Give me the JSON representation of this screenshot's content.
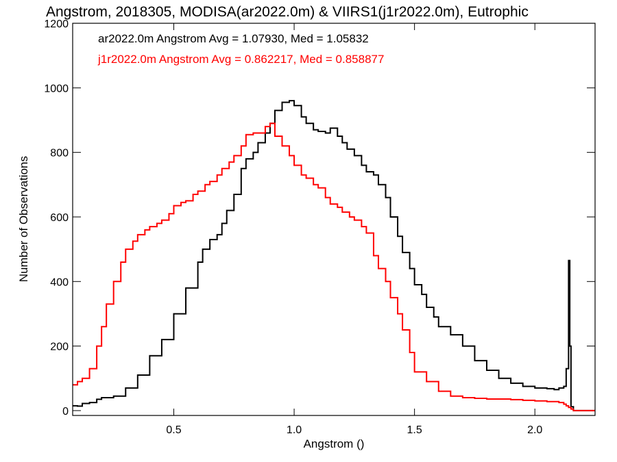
{
  "chart_data": {
    "type": "line",
    "title": "Angstrom, 2018305, MODISA(ar2022.0m) & VIIRS1(j1r2022.0m), Eutrophic",
    "xlabel": "Angstrom ()",
    "ylabel": "Number of Observations",
    "xlim": [
      0.08,
      2.25
    ],
    "ylim": [
      -15,
      1200
    ],
    "x_ticks": [
      0.5,
      1.0,
      1.5,
      2.0
    ],
    "x_tick_labels": [
      "0.5",
      "1.0",
      "1.5",
      "2.0"
    ],
    "y_ticks": [
      0,
      200,
      400,
      600,
      800,
      1000,
      1200
    ],
    "y_tick_labels": [
      "0",
      "200",
      "400",
      "600",
      "800",
      "1000",
      "1200"
    ],
    "grid": false,
    "step_style": "histogram",
    "annotations": [
      {
        "text": "ar2022.0m Angstrom Avg = 1.07930, Med = 1.05832",
        "color": "#000000"
      },
      {
        "text": "j1r2022.0m Angstrom Avg = 0.862217, Med = 0.858877",
        "color": "#ff0000"
      }
    ],
    "series": [
      {
        "color": "#000000",
        "x": [
          0.08,
          0.1,
          0.12,
          0.15,
          0.18,
          0.2,
          0.25,
          0.3,
          0.35,
          0.4,
          0.45,
          0.5,
          0.55,
          0.6,
          0.62,
          0.65,
          0.68,
          0.7,
          0.72,
          0.75,
          0.78,
          0.8,
          0.83,
          0.85,
          0.88,
          0.9,
          0.92,
          0.95,
          0.98,
          1.0,
          1.03,
          1.05,
          1.08,
          1.1,
          1.13,
          1.15,
          1.18,
          1.2,
          1.22,
          1.25,
          1.28,
          1.3,
          1.33,
          1.35,
          1.38,
          1.4,
          1.43,
          1.45,
          1.48,
          1.5,
          1.53,
          1.55,
          1.58,
          1.6,
          1.65,
          1.7,
          1.75,
          1.8,
          1.85,
          1.9,
          1.95,
          2.0,
          2.05,
          2.08,
          2.1,
          2.12,
          2.13,
          2.14,
          2.145,
          2.15,
          2.16,
          2.18,
          2.2,
          2.25
        ],
        "values": [
          15,
          14,
          22,
          25,
          35,
          40,
          45,
          70,
          110,
          170,
          220,
          300,
          380,
          460,
          500,
          530,
          545,
          580,
          620,
          670,
          750,
          780,
          800,
          830,
          860,
          890,
          930,
          955,
          960,
          945,
          910,
          890,
          870,
          865,
          860,
          875,
          850,
          830,
          810,
          790,
          760,
          740,
          730,
          700,
          660,
          600,
          540,
          490,
          440,
          390,
          360,
          320,
          290,
          260,
          235,
          200,
          155,
          125,
          100,
          85,
          75,
          70,
          68,
          65,
          70,
          75,
          130,
          465,
          200,
          12,
          0,
          0,
          0,
          0
        ]
      },
      {
        "color": "#ff0000",
        "x": [
          0.08,
          0.1,
          0.12,
          0.15,
          0.18,
          0.2,
          0.22,
          0.25,
          0.28,
          0.3,
          0.33,
          0.35,
          0.38,
          0.4,
          0.43,
          0.45,
          0.48,
          0.5,
          0.53,
          0.55,
          0.58,
          0.6,
          0.63,
          0.65,
          0.68,
          0.7,
          0.73,
          0.75,
          0.78,
          0.8,
          0.83,
          0.85,
          0.88,
          0.9,
          0.92,
          0.95,
          0.98,
          1.0,
          1.03,
          1.05,
          1.08,
          1.1,
          1.13,
          1.15,
          1.18,
          1.2,
          1.23,
          1.25,
          1.28,
          1.3,
          1.33,
          1.35,
          1.38,
          1.4,
          1.43,
          1.45,
          1.48,
          1.5,
          1.55,
          1.6,
          1.65,
          1.7,
          1.75,
          1.8,
          1.85,
          1.9,
          1.95,
          2.0,
          2.05,
          2.1,
          2.12,
          2.13,
          2.14,
          2.15,
          2.16,
          2.18,
          2.2,
          2.25
        ],
        "values": [
          80,
          90,
          100,
          130,
          200,
          260,
          330,
          400,
          460,
          500,
          525,
          545,
          560,
          570,
          580,
          590,
          610,
          635,
          645,
          650,
          670,
          680,
          700,
          710,
          730,
          750,
          770,
          790,
          820,
          855,
          860,
          860,
          880,
          890,
          850,
          820,
          790,
          760,
          730,
          720,
          700,
          690,
          660,
          640,
          630,
          615,
          600,
          590,
          570,
          550,
          480,
          440,
          400,
          350,
          300,
          250,
          180,
          120,
          90,
          60,
          45,
          40,
          38,
          36,
          36,
          34,
          32,
          30,
          28,
          25,
          20,
          15,
          10,
          5,
          0,
          0,
          0,
          0
        ]
      }
    ]
  }
}
